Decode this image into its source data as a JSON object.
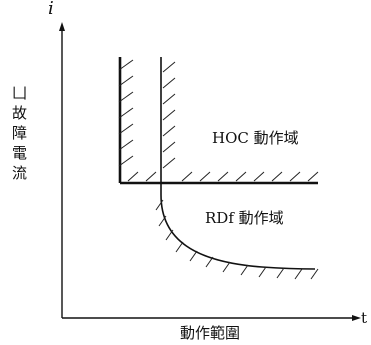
{
  "diagram": {
    "y_axis_symbol": "i",
    "x_axis_symbol": "t",
    "y_axis_label": [
      "故",
      "障",
      "電",
      "流"
    ],
    "y_axis_label_partial_top": "⼐",
    "x_axis_label": "動作範圍",
    "region_upper": "HOC 動作域",
    "region_lower": "RDf 動作域"
  }
}
